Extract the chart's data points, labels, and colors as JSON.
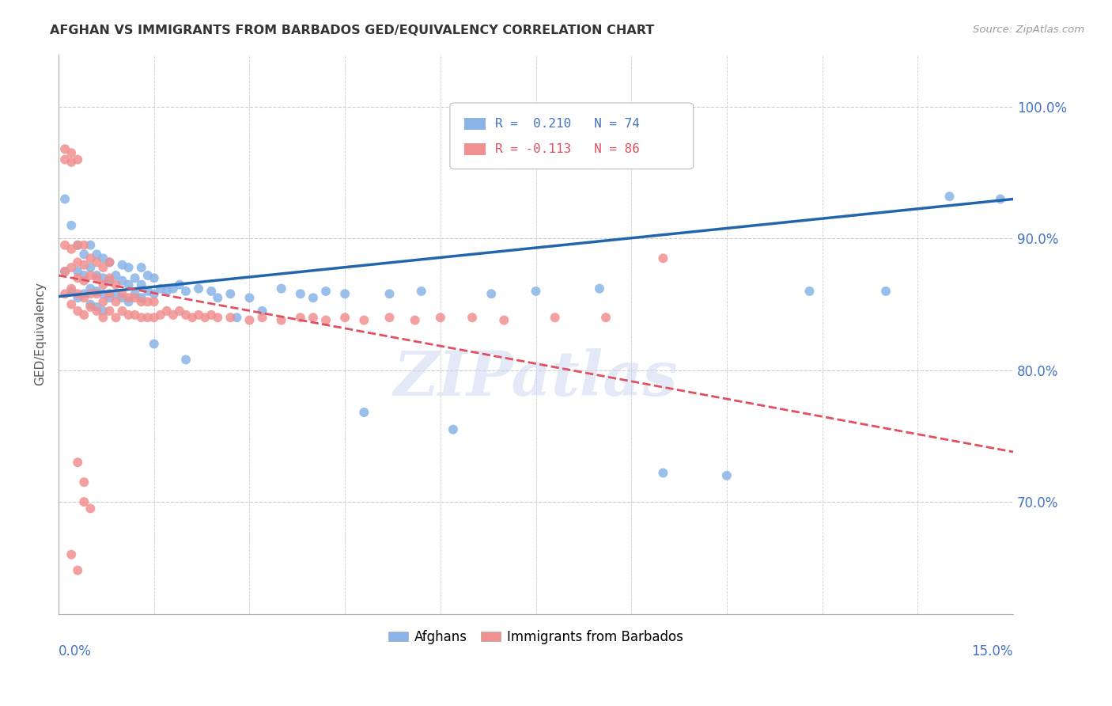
{
  "title": "AFGHAN VS IMMIGRANTS FROM BARBADOS GED/EQUIVALENCY CORRELATION CHART",
  "source": "Source: ZipAtlas.com",
  "ylabel": "GED/Equivalency",
  "ytick_labels": [
    "70.0%",
    "80.0%",
    "90.0%",
    "100.0%"
  ],
  "ytick_values": [
    0.7,
    0.8,
    0.9,
    1.0
  ],
  "xmin": 0.0,
  "xmax": 0.15,
  "ymin": 0.615,
  "ymax": 1.04,
  "afghan_color": "#8ab4e8",
  "barbados_color": "#f09090",
  "afghan_line_color": "#2166ac",
  "barbados_line_color": "#e05060",
  "watermark": "ZIPatlas",
  "afghans_label": "Afghans",
  "barbados_label": "Immigrants from Barbados",
  "afghan_R": 0.21,
  "afghan_N": 74,
  "barbados_R": -0.113,
  "barbados_N": 86,
  "afghan_line_x0": 0.0,
  "afghan_line_y0": 0.856,
  "afghan_line_x1": 0.15,
  "afghan_line_y1": 0.93,
  "barbados_line_x0": 0.0,
  "barbados_line_y0": 0.872,
  "barbados_line_x1": 0.15,
  "barbados_line_y1": 0.738,
  "afghan_scatter_x": [
    0.001,
    0.001,
    0.002,
    0.002,
    0.003,
    0.003,
    0.003,
    0.004,
    0.004,
    0.004,
    0.005,
    0.005,
    0.005,
    0.005,
    0.006,
    0.006,
    0.006,
    0.006,
    0.007,
    0.007,
    0.007,
    0.007,
    0.008,
    0.008,
    0.008,
    0.009,
    0.009,
    0.01,
    0.01,
    0.01,
    0.011,
    0.011,
    0.011,
    0.012,
    0.012,
    0.013,
    0.013,
    0.013,
    0.014,
    0.014,
    0.015,
    0.015,
    0.016,
    0.017,
    0.018,
    0.019,
    0.02,
    0.022,
    0.024,
    0.025,
    0.027,
    0.028,
    0.03,
    0.032,
    0.035,
    0.038,
    0.04,
    0.042,
    0.045,
    0.048,
    0.052,
    0.057,
    0.062,
    0.068,
    0.075,
    0.085,
    0.095,
    0.105,
    0.118,
    0.13,
    0.14,
    0.148,
    0.015,
    0.02
  ],
  "afghan_scatter_y": [
    0.875,
    0.93,
    0.86,
    0.91,
    0.855,
    0.875,
    0.895,
    0.858,
    0.872,
    0.888,
    0.85,
    0.862,
    0.878,
    0.895,
    0.848,
    0.86,
    0.872,
    0.888,
    0.845,
    0.858,
    0.87,
    0.885,
    0.855,
    0.868,
    0.882,
    0.858,
    0.872,
    0.855,
    0.868,
    0.88,
    0.852,
    0.865,
    0.878,
    0.858,
    0.87,
    0.855,
    0.865,
    0.878,
    0.86,
    0.872,
    0.858,
    0.87,
    0.862,
    0.86,
    0.862,
    0.865,
    0.86,
    0.862,
    0.86,
    0.855,
    0.858,
    0.84,
    0.855,
    0.845,
    0.862,
    0.858,
    0.855,
    0.86,
    0.858,
    0.768,
    0.858,
    0.86,
    0.755,
    0.858,
    0.86,
    0.862,
    0.722,
    0.72,
    0.86,
    0.86,
    0.932,
    0.93,
    0.82,
    0.808
  ],
  "barbados_scatter_x": [
    0.001,
    0.001,
    0.001,
    0.001,
    0.001,
    0.002,
    0.002,
    0.002,
    0.002,
    0.002,
    0.002,
    0.003,
    0.003,
    0.003,
    0.003,
    0.003,
    0.003,
    0.004,
    0.004,
    0.004,
    0.004,
    0.004,
    0.005,
    0.005,
    0.005,
    0.005,
    0.006,
    0.006,
    0.006,
    0.006,
    0.007,
    0.007,
    0.007,
    0.007,
    0.008,
    0.008,
    0.008,
    0.008,
    0.009,
    0.009,
    0.009,
    0.01,
    0.01,
    0.011,
    0.011,
    0.012,
    0.012,
    0.013,
    0.013,
    0.014,
    0.014,
    0.015,
    0.015,
    0.016,
    0.017,
    0.018,
    0.019,
    0.02,
    0.021,
    0.022,
    0.023,
    0.024,
    0.025,
    0.027,
    0.03,
    0.032,
    0.035,
    0.038,
    0.04,
    0.042,
    0.045,
    0.048,
    0.052,
    0.056,
    0.06,
    0.065,
    0.07,
    0.078,
    0.086,
    0.095,
    0.003,
    0.004,
    0.004,
    0.005,
    0.002,
    0.003
  ],
  "barbados_scatter_y": [
    0.858,
    0.875,
    0.895,
    0.96,
    0.968,
    0.85,
    0.862,
    0.878,
    0.892,
    0.958,
    0.965,
    0.845,
    0.858,
    0.87,
    0.882,
    0.895,
    0.96,
    0.842,
    0.855,
    0.868,
    0.88,
    0.895,
    0.848,
    0.858,
    0.872,
    0.885,
    0.845,
    0.858,
    0.87,
    0.882,
    0.84,
    0.852,
    0.865,
    0.878,
    0.845,
    0.858,
    0.87,
    0.882,
    0.84,
    0.852,
    0.865,
    0.845,
    0.858,
    0.842,
    0.855,
    0.842,
    0.855,
    0.84,
    0.852,
    0.84,
    0.852,
    0.84,
    0.852,
    0.842,
    0.845,
    0.842,
    0.845,
    0.842,
    0.84,
    0.842,
    0.84,
    0.842,
    0.84,
    0.84,
    0.838,
    0.84,
    0.838,
    0.84,
    0.84,
    0.838,
    0.84,
    0.838,
    0.84,
    0.838,
    0.84,
    0.84,
    0.838,
    0.84,
    0.84,
    0.885,
    0.73,
    0.715,
    0.7,
    0.695,
    0.66,
    0.648
  ]
}
